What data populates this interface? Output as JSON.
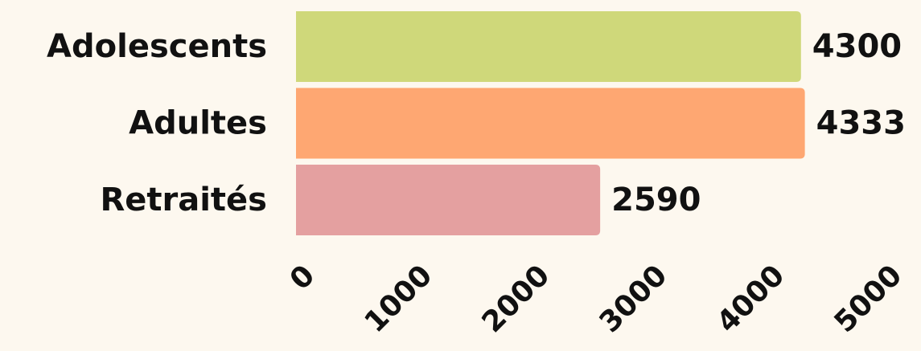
{
  "chart_data": {
    "type": "bar",
    "orientation": "horizontal",
    "categories": [
      "Adolescents",
      "Adultes",
      "Retraités"
    ],
    "values": [
      4300,
      4333,
      2590
    ],
    "colors": [
      "#cfd87a",
      "#fea772",
      "#e4a0a0"
    ],
    "xlim": [
      0,
      5000
    ],
    "xticks": [
      0,
      1000,
      2000,
      3000,
      4000,
      5000
    ]
  }
}
